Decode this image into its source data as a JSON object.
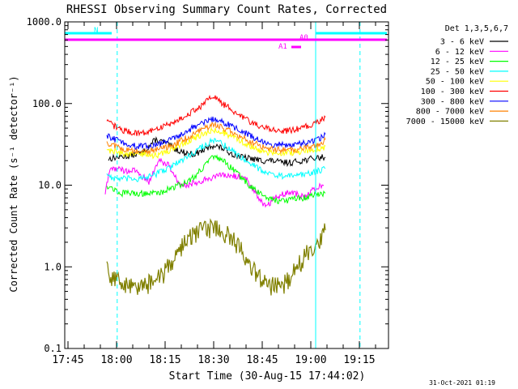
{
  "chart_data": {
    "type": "line",
    "title": "RHESSI Observing Summary Count Rates, Corrected",
    "xlabel": "Start Time (30-Aug-15 17:44:02)",
    "ylabel": "Corrected Count Rate (s⁻¹ detector⁻¹)",
    "y_scale": "log",
    "ylim": [
      0.1,
      1000
    ],
    "x_unit": "minutes after 17:44:02",
    "xlim": [
      0,
      100
    ],
    "x_ticks": [
      {
        "x": 1,
        "label": "17:45"
      },
      {
        "x": 16,
        "label": "18:00"
      },
      {
        "x": 31,
        "label": "18:15"
      },
      {
        "x": 46,
        "label": "18:30"
      },
      {
        "x": 61,
        "label": "18:45"
      },
      {
        "x": 76,
        "label": "19:00"
      },
      {
        "x": 91,
        "label": "19:15"
      }
    ],
    "y_ticks": [
      {
        "value": 0.1,
        "label": "0.1"
      },
      {
        "value": 1,
        "label": "1.0"
      },
      {
        "value": 10,
        "label": "10.0"
      },
      {
        "value": 100,
        "label": "100.0"
      },
      {
        "value": 1000,
        "label": "1000.0"
      }
    ],
    "legend_title": "Det 1,3,5,6,7",
    "legend_position": "right",
    "series": [
      {
        "name": "3 - 6 keV",
        "color": "#000000",
        "x": [
          13.5,
          16,
          20,
          24,
          28,
          31,
          34,
          37,
          40,
          43,
          46,
          49,
          52,
          55,
          58,
          61,
          64,
          67,
          70,
          73,
          76,
          79,
          80.5
        ],
        "y": [
          21,
          22,
          23,
          25,
          36,
          33,
          28,
          25,
          24,
          27,
          31,
          28,
          24,
          22,
          21,
          20,
          20,
          19,
          19,
          20,
          21,
          22,
          22
        ]
      },
      {
        "name": "6 - 12 keV",
        "color": "#ff00ff",
        "x": [
          12.5,
          14,
          16,
          19,
          22,
          26,
          29,
          32,
          35,
          38,
          41,
          44,
          47,
          50,
          53,
          56,
          59,
          62,
          65,
          68,
          71,
          74,
          77,
          80
        ],
        "y": [
          8,
          16,
          16,
          15,
          15,
          11,
          20,
          18,
          11,
          10,
          11,
          12,
          13,
          13,
          13,
          12,
          8,
          5.5,
          7,
          8,
          8,
          7,
          9,
          10
        ]
      },
      {
        "name": "12 - 25 keV",
        "color": "#00ff00",
        "x": [
          13,
          15,
          17,
          20,
          23,
          26,
          29,
          32,
          35,
          38,
          41,
          44,
          46,
          48,
          51,
          54,
          57,
          60,
          63,
          66,
          69,
          72,
          75,
          78,
          80.5
        ],
        "y": [
          10,
          9,
          8,
          8,
          8,
          8,
          8,
          9,
          10,
          11,
          14,
          19,
          22,
          21,
          17,
          13,
          10,
          8,
          7,
          6.5,
          6.5,
          7,
          7,
          8,
          8
        ]
      },
      {
        "name": "25 - 50 keV",
        "color": "#00ffff",
        "x": [
          13,
          15,
          18,
          21,
          24,
          27,
          30,
          33,
          36,
          39,
          42,
          45,
          46.5,
          48,
          51,
          54,
          57,
          60,
          63,
          66,
          69,
          72,
          75,
          78,
          80.5
        ],
        "y": [
          14,
          12,
          12,
          12,
          12,
          13,
          15,
          17,
          20,
          24,
          29,
          34,
          35,
          33,
          28,
          23,
          19,
          16,
          14,
          13,
          13,
          13,
          14,
          15,
          16
        ]
      },
      {
        "name": "50 - 100 keV",
        "color": "#ffff00",
        "x": [
          13,
          16,
          19,
          22,
          25,
          28,
          31,
          34,
          37,
          40,
          43,
          46,
          49,
          52,
          55,
          58,
          61,
          64,
          67,
          70,
          73,
          76,
          79,
          80.5
        ],
        "y": [
          27,
          26,
          24,
          24,
          24,
          23,
          25,
          29,
          33,
          38,
          42,
          48,
          44,
          39,
          34,
          29,
          26,
          25,
          25,
          25,
          26,
          27,
          28,
          30
        ]
      },
      {
        "name": "100 - 300 keV",
        "color": "#ff0000",
        "x": [
          13,
          15,
          18,
          21,
          24,
          27,
          30,
          33,
          36,
          39,
          42,
          44,
          46,
          47,
          49,
          52,
          55,
          58,
          61,
          64,
          67,
          70,
          73,
          76,
          79,
          80.5
        ],
        "y": [
          60,
          54,
          47,
          44,
          44,
          46,
          52,
          58,
          66,
          78,
          92,
          108,
          125,
          112,
          98,
          82,
          68,
          58,
          52,
          48,
          46,
          47,
          50,
          55,
          62,
          68
        ]
      },
      {
        "name": "300 - 800 keV",
        "color": "#0000ff",
        "x": [
          13,
          16,
          19,
          22,
          25,
          28,
          31,
          34,
          37,
          40,
          43,
          46,
          49,
          52,
          55,
          58,
          61,
          64,
          67,
          70,
          73,
          76,
          79,
          80.5
        ],
        "y": [
          40,
          36,
          32,
          30,
          30,
          31,
          34,
          38,
          44,
          52,
          59,
          64,
          60,
          52,
          45,
          39,
          34,
          32,
          31,
          31,
          32,
          34,
          38,
          42
        ]
      },
      {
        "name": "800 - 7000 keV",
        "color": "#ff8000",
        "x": [
          13,
          16,
          19,
          22,
          25,
          28,
          31,
          34,
          37,
          40,
          43,
          46,
          49,
          52,
          55,
          58,
          61,
          64,
          67,
          70,
          73,
          76,
          79,
          80.5
        ],
        "y": [
          33,
          30,
          27,
          26,
          26,
          27,
          29,
          32,
          37,
          43,
          50,
          55,
          51,
          44,
          38,
          33,
          30,
          28,
          27,
          27,
          28,
          30,
          33,
          36
        ]
      },
      {
        "name": "7000 - 15000 keV",
        "color": "#808000",
        "x": [
          13,
          14.5,
          16,
          19,
          22,
          25,
          28,
          31,
          34,
          37,
          40,
          43,
          46,
          49,
          52,
          55,
          58,
          61,
          64,
          67,
          70,
          73,
          76,
          79,
          80.5
        ],
        "y": [
          1.0,
          0.8,
          0.7,
          0.6,
          0.6,
          0.6,
          0.7,
          0.9,
          1.4,
          2.0,
          2.5,
          2.9,
          3.1,
          2.8,
          2.2,
          1.5,
          1.0,
          0.7,
          0.6,
          0.6,
          0.8,
          1.2,
          1.7,
          2.3,
          2.8
        ]
      }
    ],
    "state_bars": [
      {
        "label": "N",
        "color": "#00ffff",
        "segments": [
          [
            0,
            14.5
          ],
          [
            77.5,
            99.5
          ]
        ]
      },
      {
        "label": "A0",
        "color": "#ff00ff",
        "segments": [
          [
            0,
            99.5
          ]
        ]
      },
      {
        "label": "A1",
        "color": "#ff00ff",
        "segments": [
          [
            70,
            73
          ]
        ]
      }
    ],
    "vertical_markers": [
      {
        "x": 0,
        "color": "#00ffff",
        "style": "solid"
      },
      {
        "x": 16.2,
        "color": "#00ffff",
        "style": "dashed"
      },
      {
        "x": 77.5,
        "color": "#00ffff",
        "style": "solid"
      },
      {
        "x": 91.2,
        "color": "#00ffff",
        "style": "dashed"
      }
    ],
    "footer": "31-Oct-2021 01:19"
  }
}
